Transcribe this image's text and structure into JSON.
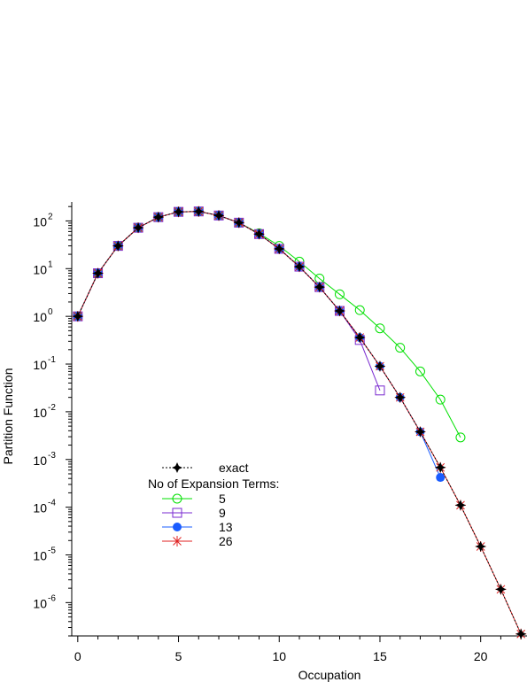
{
  "chart_data": {
    "type": "line",
    "xlabel": "Occupation",
    "ylabel": "Partition Function",
    "x_scale": "linear",
    "y_scale": "log",
    "xlim": [
      -0.3,
      22.3
    ],
    "ylim": [
      2e-07,
      250
    ],
    "x_ticks": [
      0,
      5,
      10,
      15,
      20
    ],
    "y_tick_exponents": [
      2,
      1,
      0,
      -1,
      -2,
      -3,
      -4,
      -5,
      -6
    ],
    "legend": {
      "placement": "lower-left",
      "exact_label": "exact",
      "heading": "No of Expansion Terms:"
    },
    "series": [
      {
        "name": "exact",
        "color": "#000000",
        "marker": "star4",
        "line": "dotted",
        "x": [
          0,
          1,
          2,
          3,
          4,
          5,
          6,
          7,
          8,
          9,
          10,
          11,
          12,
          13,
          14,
          15,
          16,
          17,
          18,
          19,
          20,
          21,
          22
        ],
        "y": [
          1,
          8,
          30,
          72,
          120,
          155,
          158,
          130,
          92,
          53,
          26,
          11,
          4.1,
          1.3,
          0.36,
          0.09,
          0.02,
          0.0038,
          0.00068,
          0.00011,
          1.5e-05,
          1.9e-06,
          2.2e-07
        ]
      },
      {
        "name": "5",
        "color": "#00e000",
        "marker": "open-circle",
        "line": "solid",
        "x": [
          0,
          1,
          2,
          3,
          4,
          5,
          6,
          7,
          8,
          9,
          10,
          11,
          12,
          13,
          14,
          15,
          16,
          17,
          18,
          19
        ],
        "y": [
          1,
          8,
          30,
          72,
          120,
          155,
          158,
          130,
          92,
          55,
          30,
          14,
          6.2,
          2.9,
          1.35,
          0.56,
          0.22,
          0.07,
          0.018,
          0.0029
        ]
      },
      {
        "name": "9",
        "color": "#7a2ad0",
        "marker": "open-square",
        "line": "solid",
        "x": [
          0,
          1,
          2,
          3,
          4,
          5,
          6,
          7,
          8,
          9,
          10,
          11,
          12,
          13,
          14,
          15
        ],
        "y": [
          1,
          8,
          30,
          72,
          120,
          155,
          158,
          130,
          92,
          53,
          26,
          11,
          4.1,
          1.3,
          0.32,
          0.028
        ]
      },
      {
        "name": "13",
        "color": "#1a5cff",
        "marker": "filled-circle",
        "line": "solid",
        "x": [
          0,
          1,
          2,
          3,
          4,
          5,
          6,
          7,
          8,
          9,
          10,
          11,
          12,
          13,
          14,
          15,
          16,
          17,
          18
        ],
        "y": [
          1,
          8,
          30,
          72,
          120,
          155,
          158,
          130,
          92,
          53,
          26,
          11,
          4.1,
          1.3,
          0.36,
          0.09,
          0.02,
          0.0038,
          0.00042
        ]
      },
      {
        "name": "26",
        "color": "#e02020",
        "marker": "asterisk",
        "line": "solid",
        "x": [
          0,
          1,
          2,
          3,
          4,
          5,
          6,
          7,
          8,
          9,
          10,
          11,
          12,
          13,
          14,
          15,
          16,
          17,
          18,
          19,
          20,
          21,
          22
        ],
        "y": [
          1,
          8,
          30,
          72,
          120,
          155,
          158,
          130,
          92,
          53,
          26,
          11,
          4.1,
          1.3,
          0.36,
          0.09,
          0.02,
          0.0038,
          0.00068,
          0.00011,
          1.5e-05,
          1.9e-06,
          2.2e-07
        ]
      }
    ]
  }
}
